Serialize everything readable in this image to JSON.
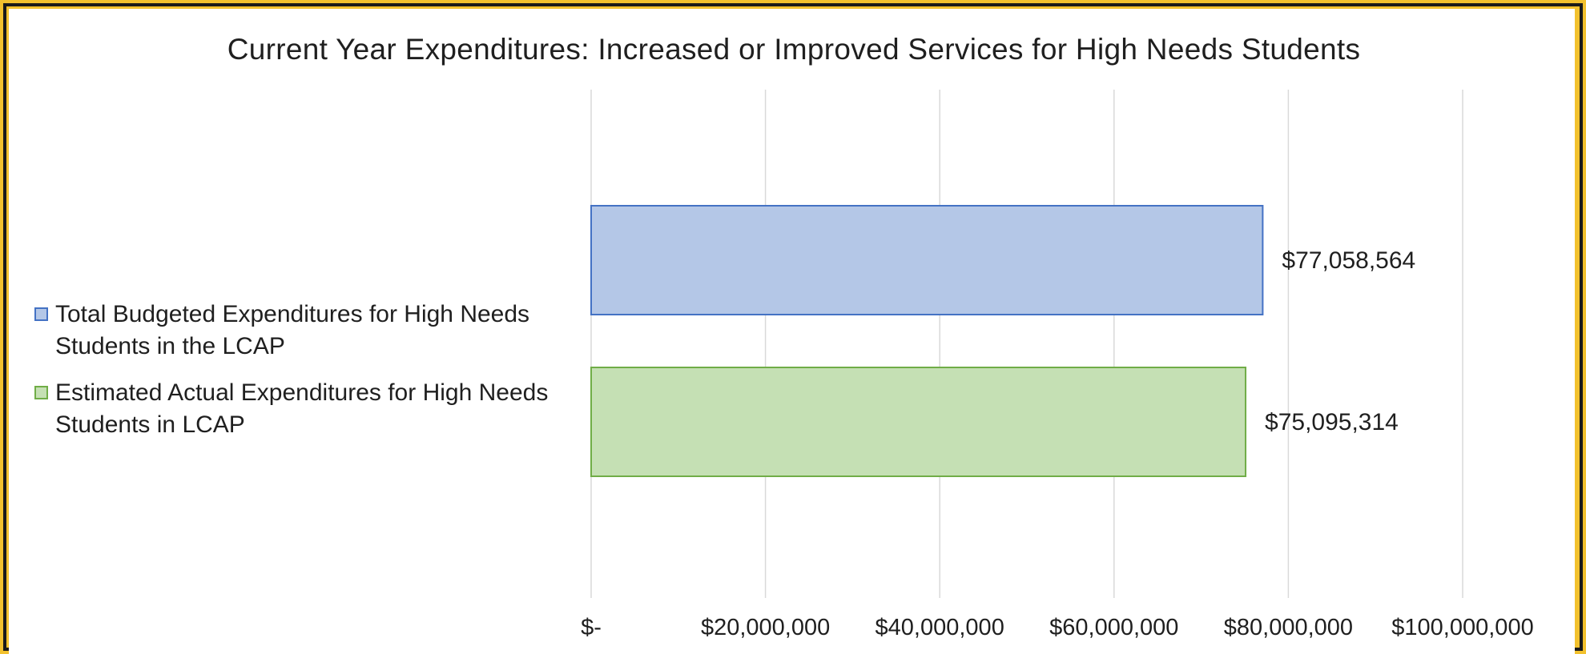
{
  "chart_data": {
    "type": "bar",
    "orientation": "horizontal",
    "title": "Current Year Expenditures: Increased or Improved Services for High Needs Students",
    "xlabel": "",
    "ylabel": "",
    "xlim": [
      0,
      100000000
    ],
    "grid": true,
    "legend_position": "left",
    "ticks": [
      {
        "value": 0,
        "label": "$-"
      },
      {
        "value": 20000000,
        "label": "$20,000,000"
      },
      {
        "value": 40000000,
        "label": "$40,000,000"
      },
      {
        "value": 60000000,
        "label": "$60,000,000"
      },
      {
        "value": 80000000,
        "label": "$80,000,000"
      },
      {
        "value": 100000000,
        "label": "$100,000,000"
      }
    ],
    "series": [
      {
        "name": "Total Budgeted Expenditures for High Needs Students in the LCAP",
        "value": 77058564,
        "label": "$77,058,564",
        "fill": "#b4c7e7",
        "stroke": "#4472c4"
      },
      {
        "name": "Estimated Actual Expenditures for High Needs Students in LCAP",
        "value": 75095314,
        "label": "$75,095,314",
        "fill": "#c5e0b4",
        "stroke": "#70ad47"
      }
    ]
  },
  "colors": {
    "frame": "#f2c12e",
    "border": "#1a1a1a",
    "background": "#ffffff",
    "grid": "#d9d9d9",
    "text": "#1f1f1f"
  }
}
